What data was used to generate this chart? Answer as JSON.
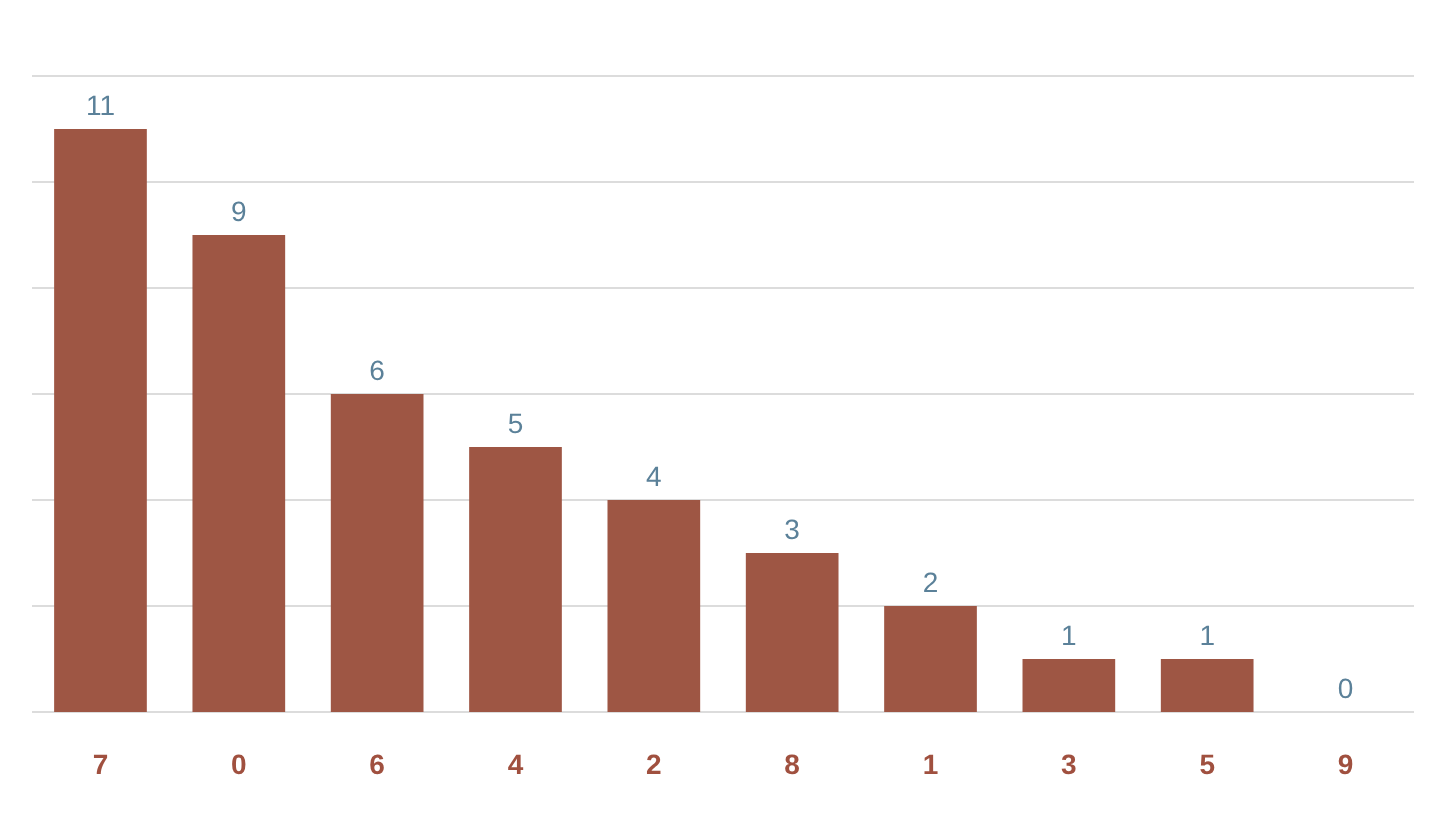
{
  "chart_data": {
    "type": "bar",
    "categories": [
      "7",
      "0",
      "6",
      "4",
      "2",
      "8",
      "1",
      "3",
      "5",
      "9"
    ],
    "values": [
      11,
      9,
      6,
      5,
      4,
      3,
      2,
      1,
      1,
      0
    ],
    "color": "#9e5644",
    "ylim": [
      0,
      12
    ],
    "yticks": [
      {
        "value": 0,
        "label": null
      },
      {
        "value": 2,
        "label": null
      },
      {
        "value": 4,
        "label": null
      },
      {
        "value": 6,
        "label": null
      },
      {
        "value": 8,
        "label": null
      },
      {
        "value": 10,
        "label": null
      },
      {
        "value": 12,
        "label": null
      }
    ],
    "grid": "y",
    "tick_labels": "x",
    "data_labels": true
  }
}
